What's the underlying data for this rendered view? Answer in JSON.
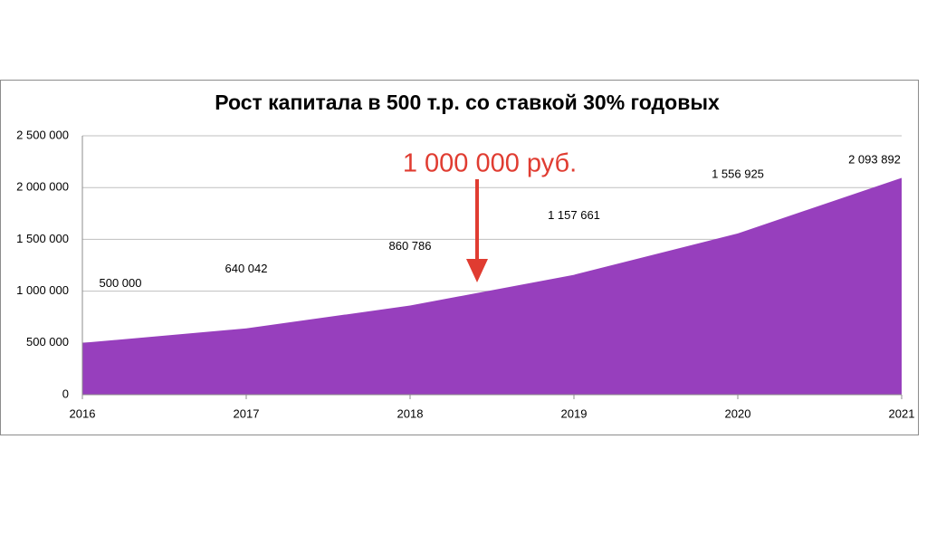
{
  "chart_data": {
    "type": "area",
    "title": "Рост капитала в 500 т.р. со ставкой 30% годовых",
    "annotation": "1 000 000 руб.",
    "categories": [
      "2016",
      "2017",
      "2018",
      "2019",
      "2020",
      "2021"
    ],
    "values": [
      500000,
      640042,
      860786,
      1157661,
      1556925,
      2093892
    ],
    "value_labels": [
      "500 000",
      "640 042",
      "860 786",
      "1 157 661",
      "1 556 925",
      "2 093 892"
    ],
    "color": "#973fbd",
    "ylim": [
      0,
      2500000
    ],
    "yticks": [
      0,
      {
        "value": 500000,
        "label": "500 000"
      },
      {
        "value": 1000000,
        "label": "1 000 000"
      },
      {
        "value": 1500000,
        "label": "1 500 000"
      },
      {
        "value": 2000000,
        "label": "2 000 000"
      },
      {
        "value": 2500000,
        "label": "2 500 000"
      }
    ],
    "grid": true
  }
}
